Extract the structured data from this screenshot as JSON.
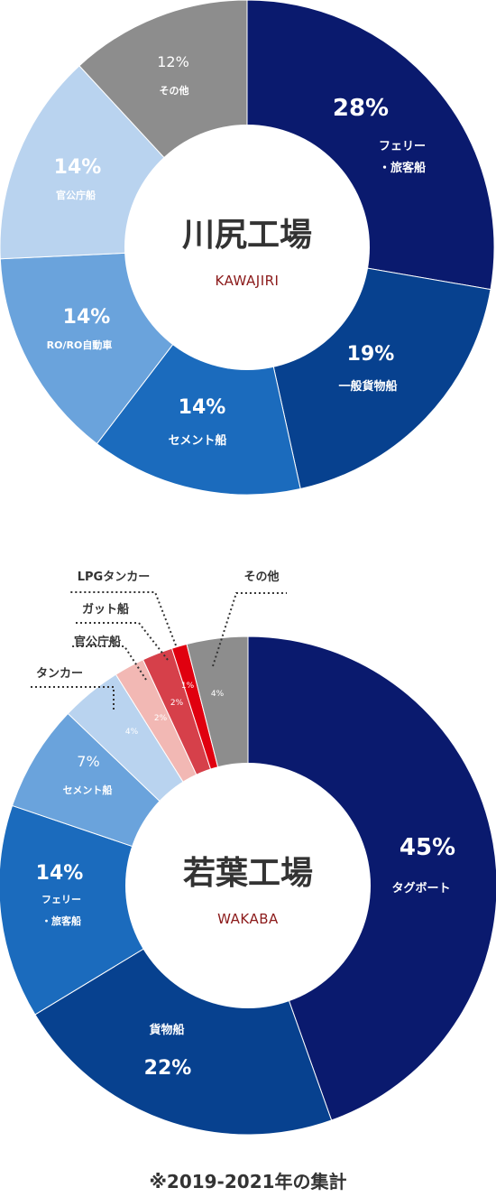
{
  "chart_data": [
    {
      "type": "pie",
      "title": "川尻工場",
      "subtitle": "KAWAJIRI",
      "donut": true,
      "slices": [
        {
          "label_lines": [
            "フェリー",
            "・旅客船"
          ],
          "value": 28,
          "value_label": "28%",
          "color": "#0a1a6e"
        },
        {
          "label_lines": [
            "一般貨物船"
          ],
          "value": 19,
          "value_label": "19%",
          "color": "#07418f"
        },
        {
          "label_lines": [
            "セメント船"
          ],
          "value": 14,
          "value_label": "14%",
          "color": "#1b6bbd"
        },
        {
          "label_lines": [
            "RO/RO自動車"
          ],
          "value": 14,
          "value_label": "14%",
          "color": "#6aa3dc"
        },
        {
          "label_lines": [
            "官公庁船"
          ],
          "value": 14,
          "value_label": "14%",
          "color": "#b9d3ef"
        },
        {
          "label_lines": [
            "その他"
          ],
          "value": 12,
          "value_label": "12%",
          "color": "#8d8d8d"
        }
      ]
    },
    {
      "type": "pie",
      "title": "若葉工場",
      "subtitle": "WAKABA",
      "donut": true,
      "slices": [
        {
          "label_lines": [
            "タグボート"
          ],
          "value": 45,
          "value_label": "45%",
          "color": "#0a1a6e"
        },
        {
          "label_lines": [
            "貨物船"
          ],
          "value": 22,
          "value_label": "22%",
          "color": "#07418f"
        },
        {
          "label_lines": [
            "フェリー",
            "・旅客船"
          ],
          "value": 14,
          "value_label": "14%",
          "color": "#1b6bbd"
        },
        {
          "label_lines": [
            "セメント船"
          ],
          "value": 7,
          "value_label": "7%",
          "color": "#6aa3dc"
        },
        {
          "label_lines": [
            "タンカー"
          ],
          "value": 4,
          "value_label": "4%",
          "color": "#b9d3ef"
        },
        {
          "label_lines": [
            "官公庁船"
          ],
          "value": 2,
          "value_label": "2%",
          "color": "#f2b8b4"
        },
        {
          "label_lines": [
            "ガット船"
          ],
          "value": 2,
          "value_label": "2%",
          "color": "#d6404a"
        },
        {
          "label_lines": [
            "LPGタンカー"
          ],
          "value": 1,
          "value_label": "1%",
          "color": "#e0000f"
        },
        {
          "label_lines": [
            "その他"
          ],
          "value": 4,
          "value_label": "4%",
          "color": "#8d8d8d"
        }
      ]
    }
  ],
  "footnote": "※2019-2021年の集計"
}
